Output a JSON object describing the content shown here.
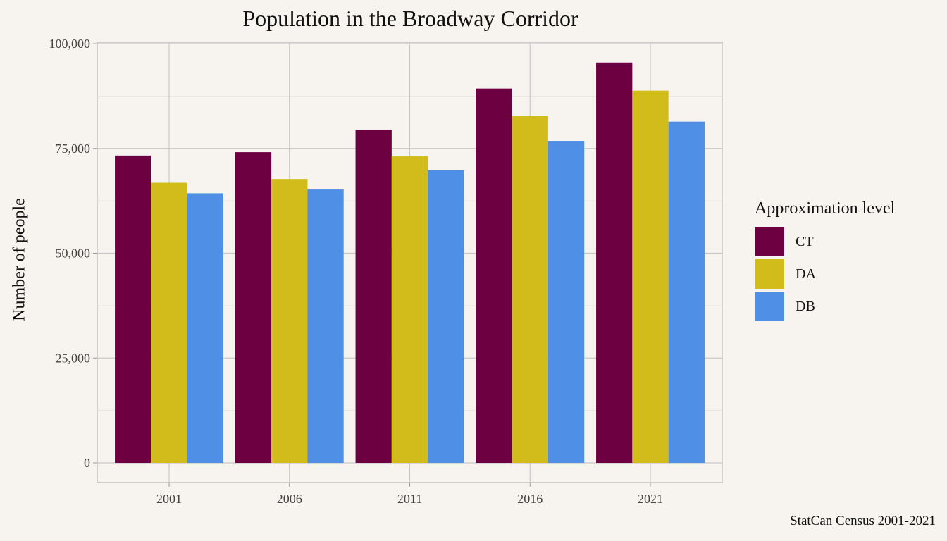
{
  "chart_data": {
    "type": "bar",
    "title": "Population in the Broadway Corridor",
    "xlabel": "",
    "ylabel": "Number of people",
    "categories": [
      "2001",
      "2006",
      "2011",
      "2016",
      "2021"
    ],
    "series": [
      {
        "name": "CT",
        "color": "#6d0040",
        "values": [
          73300,
          74100,
          79500,
          89300,
          95500
        ]
      },
      {
        "name": "DA",
        "color": "#d2bc1c",
        "values": [
          66800,
          67700,
          73100,
          82700,
          88800
        ]
      },
      {
        "name": "DB",
        "color": "#4f8fe5",
        "values": [
          64300,
          65200,
          69800,
          76800,
          81400
        ]
      }
    ],
    "ylim": [
      0,
      100000
    ],
    "yticks": [
      0,
      25000,
      50000,
      75000,
      100000
    ],
    "ytick_labels": [
      "0",
      "25,000",
      "50,000",
      "75,000",
      "100,000"
    ],
    "grid": true,
    "legend": {
      "title": "Approximation level",
      "position": "right"
    },
    "caption": "StatCan Census 2001-2021"
  }
}
